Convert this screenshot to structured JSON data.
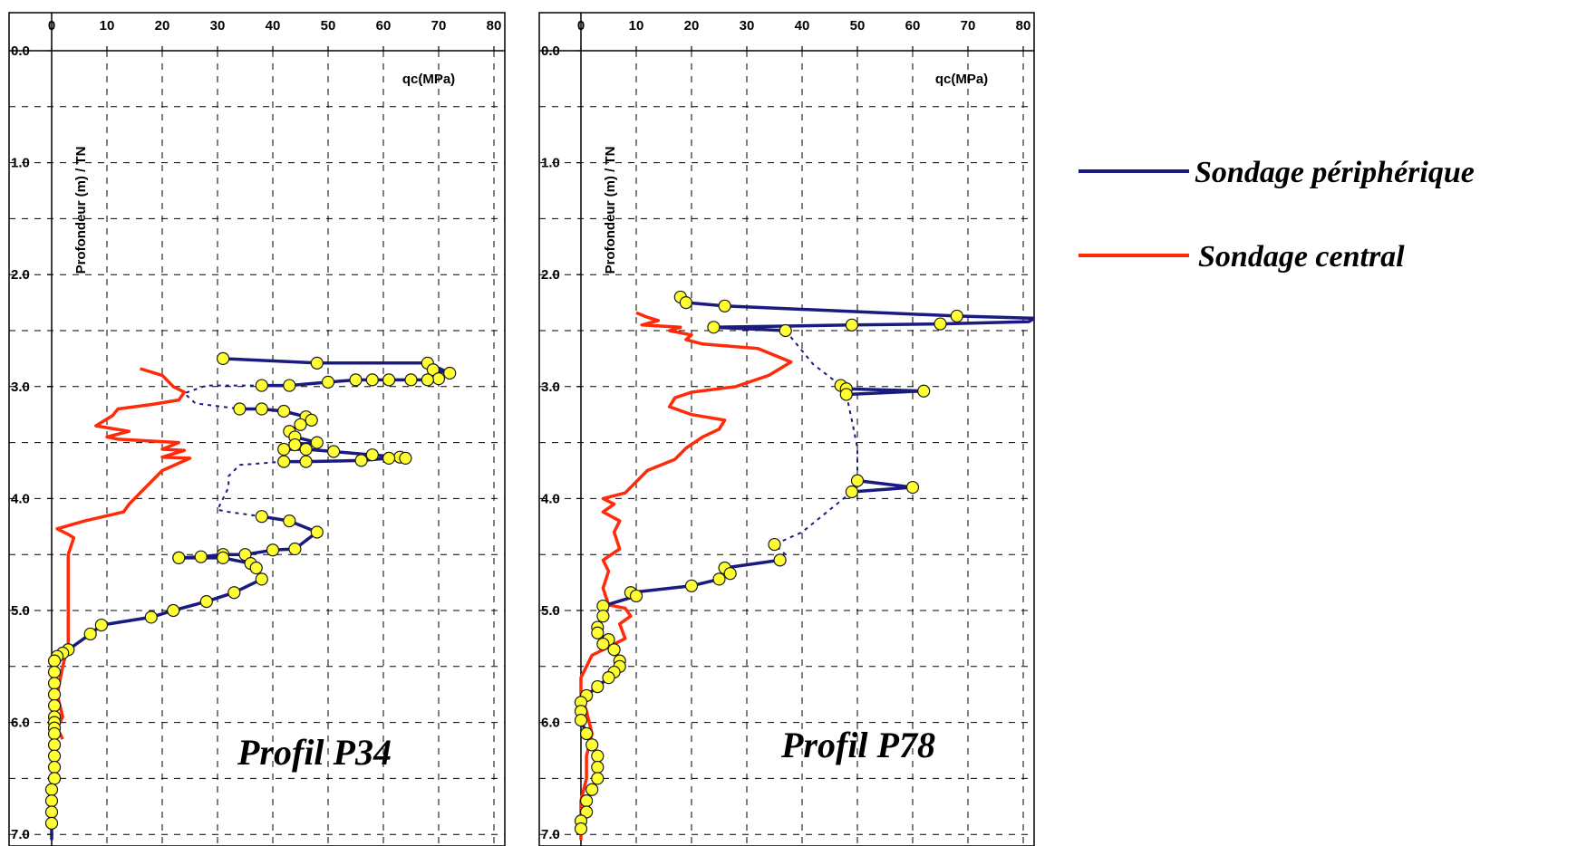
{
  "chart_data": [
    {
      "type": "line",
      "annotation": "Profil P34",
      "xlabel": "qc(MPa)",
      "ylabel": "Profondeur (m) / TN",
      "xlim": [
        0,
        80
      ],
      "ylim": [
        0,
        7
      ],
      "y_inverted": true,
      "x_axis_position": "top",
      "grid": true,
      "x_ticks": [
        "0",
        "10",
        "20",
        "30",
        "40",
        "50",
        "60",
        "70",
        "80"
      ],
      "y_ticks": [
        "0.0",
        "1.0",
        "2.0",
        "3.0",
        "4.0",
        "5.0",
        "6.0",
        "7.0"
      ],
      "series": [
        {
          "name": "Sondage périphérique",
          "color": "#1a1a80",
          "marker": "circle-yellow",
          "segments": [
            [
              [
                31,
                2.75
              ],
              [
                48,
                2.79
              ],
              [
                68,
                2.79
              ],
              [
                72,
                2.88
              ],
              [
                69,
                2.85
              ],
              [
                70,
                2.93
              ],
              [
                68,
                2.94
              ],
              [
                65,
                2.94
              ],
              [
                61,
                2.94
              ],
              [
                58,
                2.94
              ],
              [
                55,
                2.94
              ],
              [
                50,
                2.96
              ],
              [
                43,
                2.99
              ],
              [
                38,
                2.99
              ]
            ],
            [
              [
                34,
                3.2
              ],
              [
                38,
                3.2
              ],
              [
                42,
                3.22
              ],
              [
                46,
                3.27
              ],
              [
                47,
                3.3
              ],
              [
                45,
                3.34
              ],
              [
                43,
                3.4
              ],
              [
                44,
                3.45
              ],
              [
                48,
                3.5
              ],
              [
                44,
                3.52
              ],
              [
                42,
                3.56
              ],
              [
                46,
                3.56
              ],
              [
                51,
                3.58
              ],
              [
                58,
                3.61
              ],
              [
                63,
                3.63
              ],
              [
                64,
                3.64
              ],
              [
                61,
                3.64
              ],
              [
                56,
                3.66
              ],
              [
                46,
                3.67
              ],
              [
                42,
                3.67
              ]
            ],
            [
              [
                38,
                4.16
              ],
              [
                43,
                4.2
              ],
              [
                48,
                4.3
              ],
              [
                44,
                4.45
              ],
              [
                40,
                4.46
              ],
              [
                35,
                4.5
              ],
              [
                31,
                4.5
              ],
              [
                27,
                4.52
              ],
              [
                23,
                4.53
              ]
            ],
            [
              [
                23,
                4.53
              ],
              [
                31,
                4.53
              ],
              [
                36,
                4.58
              ],
              [
                37,
                4.62
              ],
              [
                38,
                4.72
              ],
              [
                33,
                4.84
              ],
              [
                28,
                4.92
              ],
              [
                22,
                5.0
              ],
              [
                18,
                5.06
              ],
              [
                9,
                5.13
              ],
              [
                7,
                5.21
              ],
              [
                3,
                5.35
              ],
              [
                2,
                5.38
              ],
              [
                1,
                5.41
              ],
              [
                0.5,
                5.45
              ],
              [
                0.5,
                5.55
              ],
              [
                0.5,
                5.65
              ],
              [
                0.5,
                5.75
              ],
              [
                0.5,
                5.85
              ],
              [
                0.5,
                5.95
              ],
              [
                0.5,
                6.0
              ],
              [
                0.5,
                6.05
              ],
              [
                0.5,
                6.1
              ],
              [
                0.5,
                6.2
              ],
              [
                0.5,
                6.3
              ],
              [
                0.5,
                6.4
              ],
              [
                0.5,
                6.5
              ],
              [
                0,
                6.6
              ],
              [
                0,
                6.7
              ],
              [
                0,
                6.8
              ],
              [
                0,
                6.9
              ],
              [
                0,
                7.05
              ]
            ]
          ],
          "dotted": [
            [
              [
                38,
                2.99
              ],
              [
                28,
                2.99
              ],
              [
                24,
                3.06
              ],
              [
                26,
                3.15
              ],
              [
                34,
                3.2
              ]
            ],
            [
              [
                42,
                3.67
              ],
              [
                34,
                3.7
              ],
              [
                32,
                3.8
              ],
              [
                32,
                3.9
              ],
              [
                31,
                4.0
              ],
              [
                30,
                4.1
              ],
              [
                32,
                4.12
              ],
              [
                38,
                4.16
              ]
            ]
          ]
        },
        {
          "name": "Sondage central",
          "color": "#ff2a0a",
          "points": [
            [
              16,
              2.84
            ],
            [
              20,
              2.9
            ],
            [
              22,
              3.0
            ],
            [
              24,
              3.05
            ],
            [
              23,
              3.12
            ],
            [
              18,
              3.16
            ],
            [
              12,
              3.2
            ],
            [
              11,
              3.26
            ],
            [
              8,
              3.35
            ],
            [
              14,
              3.4
            ],
            [
              10,
              3.45
            ],
            [
              12,
              3.47
            ],
            [
              23,
              3.5
            ],
            [
              20,
              3.56
            ],
            [
              24,
              3.57
            ],
            [
              20,
              3.63
            ],
            [
              25,
              3.64
            ],
            [
              20,
              3.75
            ],
            [
              18,
              3.85
            ],
            [
              16,
              3.95
            ],
            [
              14,
              4.05
            ],
            [
              13,
              4.12
            ],
            [
              6,
              4.2
            ],
            [
              1,
              4.27
            ],
            [
              3,
              4.32
            ],
            [
              4,
              4.35
            ],
            [
              3,
              4.5
            ],
            [
              3,
              4.7
            ],
            [
              3,
              4.9
            ],
            [
              3,
              5.1
            ],
            [
              3,
              5.3
            ],
            [
              2,
              5.5
            ],
            [
              1,
              5.75
            ],
            [
              2,
              5.95
            ],
            [
              1,
              6.05
            ],
            [
              2,
              6.15
            ]
          ]
        }
      ]
    },
    {
      "type": "line",
      "annotation": "Profil P78",
      "xlabel": "qc(MPa)",
      "ylabel": "Profondeur (m) / TN",
      "xlim": [
        0,
        80
      ],
      "ylim": [
        0,
        7
      ],
      "y_inverted": true,
      "x_axis_position": "top",
      "grid": true,
      "x_ticks": [
        "0",
        "10",
        "20",
        "30",
        "40",
        "50",
        "60",
        "70",
        "80"
      ],
      "y_ticks": [
        "0.0",
        "1.0",
        "2.0",
        "3.0",
        "4.0",
        "5.0",
        "6.0",
        "7.0"
      ],
      "series": [
        {
          "name": "Sondage périphérique",
          "color": "#1a1a80",
          "marker": "circle-yellow",
          "segments": [
            [
              [
                18,
                2.2
              ],
              [
                19,
                2.25
              ],
              [
                26,
                2.28
              ],
              [
                68,
                2.37
              ],
              [
                82,
                2.39
              ],
              [
                81,
                2.42
              ],
              [
                65,
                2.44
              ],
              [
                49,
                2.45
              ],
              [
                24,
                2.47
              ],
              [
                37,
                2.5
              ]
            ],
            [
              [
                47,
                2.99
              ],
              [
                48,
                3.02
              ],
              [
                62,
                3.04
              ],
              [
                48,
                3.07
              ]
            ],
            [
              [
                50,
                3.84
              ],
              [
                60,
                3.9
              ],
              [
                49,
                3.94
              ]
            ],
            [
              [
                35,
                4.41
              ]
            ],
            [
              [
                36,
                4.55
              ],
              [
                26,
                4.62
              ],
              [
                27,
                4.67
              ],
              [
                25,
                4.72
              ],
              [
                20,
                4.78
              ],
              [
                9,
                4.84
              ],
              [
                10,
                4.87
              ],
              [
                4,
                4.96
              ],
              [
                4,
                5.05
              ],
              [
                3,
                5.15
              ],
              [
                3,
                5.2
              ],
              [
                5,
                5.26
              ],
              [
                4,
                5.3
              ],
              [
                6,
                5.35
              ],
              [
                7,
                5.45
              ],
              [
                7,
                5.5
              ],
              [
                6,
                5.55
              ],
              [
                5,
                5.6
              ],
              [
                3,
                5.68
              ],
              [
                1,
                5.76
              ],
              [
                0,
                5.82
              ],
              [
                0,
                5.9
              ],
              [
                0,
                5.98
              ],
              [
                1,
                6.1
              ],
              [
                2,
                6.2
              ],
              [
                3,
                6.3
              ],
              [
                3,
                6.4
              ],
              [
                3,
                6.5
              ],
              [
                2,
                6.6
              ],
              [
                1,
                6.7
              ],
              [
                1,
                6.8
              ],
              [
                0,
                6.88
              ],
              [
                0,
                6.95
              ]
            ]
          ],
          "dotted": [
            [
              [
                37,
                2.5
              ],
              [
                42,
                2.8
              ],
              [
                47,
                2.99
              ]
            ],
            [
              [
                48,
                3.07
              ],
              [
                49,
                3.3
              ],
              [
                50,
                3.55
              ],
              [
                50,
                3.84
              ]
            ],
            [
              [
                49,
                3.94
              ],
              [
                45,
                4.1
              ],
              [
                40,
                4.3
              ],
              [
                35,
                4.41
              ],
              [
                37,
                4.5
              ],
              [
                36,
                4.55
              ]
            ]
          ]
        },
        {
          "name": "Sondage central",
          "color": "#ff2a0a",
          "points": [
            [
              10,
              2.34
            ],
            [
              12,
              2.38
            ],
            [
              14,
              2.41
            ],
            [
              11,
              2.45
            ],
            [
              18,
              2.47
            ],
            [
              16,
              2.5
            ],
            [
              20,
              2.54
            ],
            [
              19,
              2.58
            ],
            [
              22,
              2.62
            ],
            [
              32,
              2.66
            ],
            [
              38,
              2.78
            ],
            [
              34,
              2.9
            ],
            [
              28,
              3.0
            ],
            [
              20,
              3.05
            ],
            [
              17,
              3.1
            ],
            [
              16,
              3.18
            ],
            [
              20,
              3.25
            ],
            [
              26,
              3.3
            ],
            [
              25,
              3.38
            ],
            [
              22,
              3.45
            ],
            [
              19,
              3.55
            ],
            [
              17,
              3.65
            ],
            [
              12,
              3.75
            ],
            [
              10,
              3.85
            ],
            [
              8,
              3.95
            ],
            [
              4,
              4.0
            ],
            [
              6,
              4.05
            ],
            [
              4,
              4.12
            ],
            [
              7,
              4.2
            ],
            [
              6,
              4.3
            ],
            [
              7,
              4.45
            ],
            [
              4,
              4.55
            ],
            [
              5,
              4.65
            ],
            [
              4,
              4.8
            ],
            [
              5,
              4.95
            ],
            [
              8,
              4.98
            ],
            [
              9,
              5.05
            ],
            [
              7,
              5.12
            ],
            [
              8,
              5.25
            ],
            [
              4,
              5.35
            ],
            [
              2,
              5.4
            ],
            [
              1,
              5.5
            ],
            [
              0,
              5.6
            ],
            [
              0,
              5.75
            ],
            [
              1,
              5.9
            ],
            [
              2,
              6.1
            ],
            [
              1,
              6.3
            ],
            [
              1,
              6.5
            ],
            [
              0,
              6.7
            ],
            [
              0,
              6.9
            ],
            [
              0,
              7.05
            ]
          ]
        }
      ]
    }
  ],
  "legend": {
    "items": [
      {
        "label": "Sondage périphérique",
        "color": "#1a1a80"
      },
      {
        "label": "Sondage central",
        "color": "#ff2a0a"
      }
    ]
  }
}
